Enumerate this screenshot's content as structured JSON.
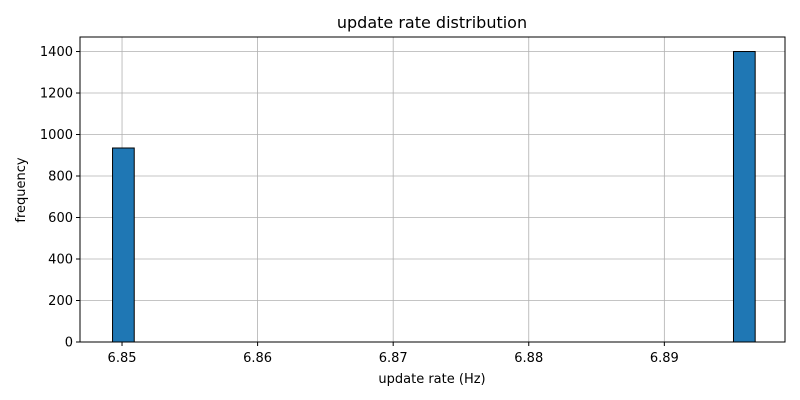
{
  "chart_data": {
    "type": "bar",
    "title": "update rate distribution",
    "xlabel": "update rate (Hz)",
    "ylabel": "frequency",
    "xlim": [
      6.8469,
      6.8989
    ],
    "ylim": [
      0,
      1470
    ],
    "xticks": [
      6.85,
      6.86,
      6.87,
      6.88,
      6.89
    ],
    "xtick_labels": [
      "6.85",
      "6.86",
      "6.87",
      "6.88",
      "6.89"
    ],
    "yticks": [
      0,
      200,
      400,
      600,
      800,
      1000,
      1200,
      1400
    ],
    "ytick_labels": [
      "0",
      "200",
      "400",
      "600",
      "800",
      "1000",
      "1200",
      "1400"
    ],
    "grid": true,
    "series": [
      {
        "bins": [
          {
            "x0": 6.8493,
            "x1": 6.8509,
            "count": 935
          },
          {
            "x0": 6.8951,
            "x1": 6.8967,
            "count": 1400
          }
        ]
      }
    ],
    "colors": {
      "bar_fill": "#1f77b4",
      "bar_edge": "#000000",
      "grid": "#b0b0b0",
      "axis": "#000000"
    }
  }
}
